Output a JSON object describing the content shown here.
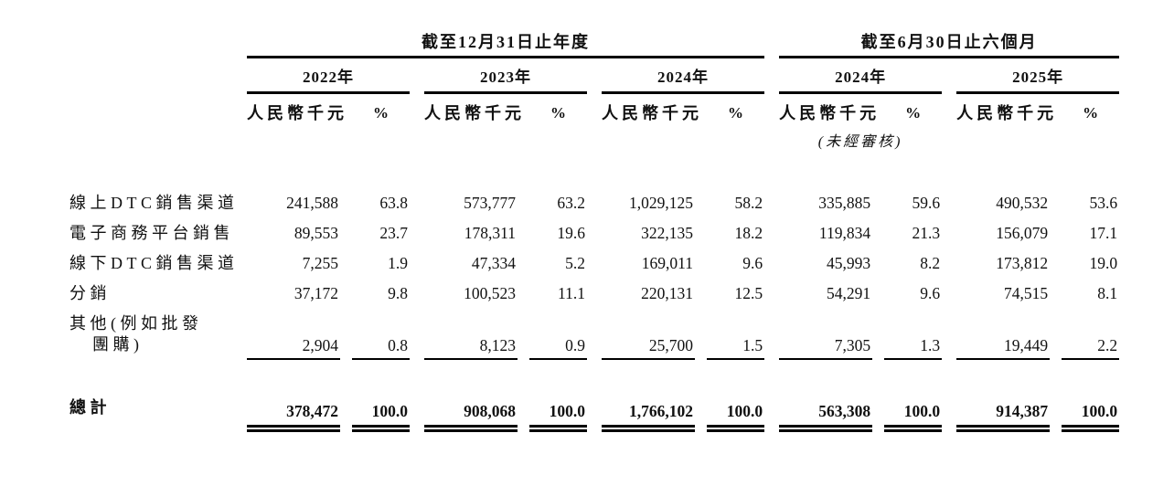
{
  "page": {
    "background": "#ffffff",
    "text_color": "#111111"
  },
  "table": {
    "header": {
      "annual": {
        "title": "截至12月31日止年度",
        "years": [
          "2022年",
          "2023年",
          "2024年"
        ]
      },
      "interim": {
        "title": "截至6月30日止六個月",
        "years": [
          "2024年",
          "2025年"
        ],
        "unaudited_note": "(未經審核)"
      },
      "unit_label": "人民幣千元",
      "percent_label": "%"
    },
    "rows": [
      {
        "label": "線上DTC銷售渠道",
        "values": [
          "241,588",
          "63.8",
          "573,777",
          "63.2",
          "1,029,125",
          "58.2",
          "335,885",
          "59.6",
          "490,532",
          "53.6"
        ]
      },
      {
        "label": "電子商務平台銷售",
        "values": [
          "89,553",
          "23.7",
          "178,311",
          "19.6",
          "322,135",
          "18.2",
          "119,834",
          "21.3",
          "156,079",
          "17.1"
        ]
      },
      {
        "label": "線下DTC銷售渠道",
        "values": [
          "7,255",
          "1.9",
          "47,334",
          "5.2",
          "169,011",
          "9.6",
          "45,993",
          "8.2",
          "173,812",
          "19.0"
        ]
      },
      {
        "label": "分銷",
        "values": [
          "37,172",
          "9.8",
          "100,523",
          "11.1",
          "220,131",
          "12.5",
          "54,291",
          "9.6",
          "74,515",
          "8.1"
        ]
      },
      {
        "label_line1": "其他(例如批發",
        "label_line2": "團購)",
        "values": [
          "2,904",
          "0.8",
          "8,123",
          "0.9",
          "25,700",
          "1.5",
          "7,305",
          "1.3",
          "19,449",
          "2.2"
        ]
      }
    ],
    "total": {
      "label": "總計",
      "values": [
        "378,472",
        "100.0",
        "908,068",
        "100.0",
        "1,766,102",
        "100.0",
        "563,308",
        "100.0",
        "914,387",
        "100.0"
      ]
    }
  }
}
